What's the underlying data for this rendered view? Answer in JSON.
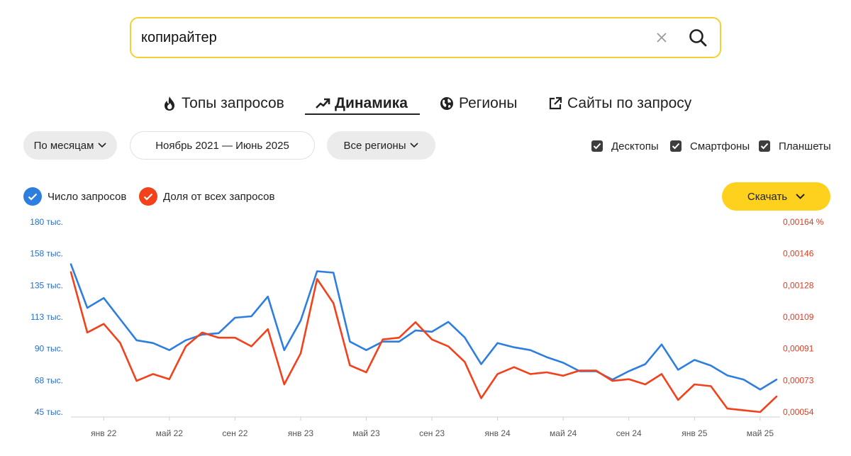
{
  "search": {
    "value": "копирайтер"
  },
  "tabs": [
    {
      "label": "Топы запросов",
      "icon": "fire-icon"
    },
    {
      "label": "Динамика",
      "icon": "trend-icon",
      "active": true
    },
    {
      "label": "Регионы",
      "icon": "globe-icon"
    },
    {
      "label": "Сайты по запросу",
      "icon": "external-link-icon"
    }
  ],
  "filters": {
    "period": "По месяцам",
    "date_range": "Ноябрь 2021 — Июнь 2025",
    "region": "Все регионы"
  },
  "devices": [
    {
      "label": "Десктопы",
      "checked": true
    },
    {
      "label": "Смартфоны",
      "checked": true
    },
    {
      "label": "Планшеты",
      "checked": true
    }
  ],
  "legend": {
    "count": {
      "label": "Число запросов",
      "color": "#2e7ee0"
    },
    "share": {
      "label": "Доля от всех запросов",
      "color": "#f2411b"
    }
  },
  "download_label": "Скачать",
  "chart_data": {
    "type": "line",
    "x": [
      "ноя 21",
      "дек 21",
      "янв 22",
      "фев 22",
      "мар 22",
      "апр 22",
      "май 22",
      "июн 22",
      "июл 22",
      "авг 22",
      "сен 22",
      "окт 22",
      "ноя 22",
      "дек 22",
      "янв 23",
      "фев 23",
      "мар 23",
      "апр 23",
      "май 23",
      "июн 23",
      "июл 23",
      "авг 23",
      "сен 23",
      "окт 23",
      "ноя 23",
      "дек 23",
      "янв 24",
      "фев 24",
      "мар 24",
      "апр 24",
      "май 24",
      "июн 24",
      "июл 24",
      "авг 24",
      "сен 24",
      "окт 24",
      "ноя 24",
      "дек 24",
      "янв 25",
      "фев 25",
      "мар 25",
      "апр 25",
      "май 25",
      "июн 25"
    ],
    "x_tick_labels": [
      "янв 22",
      "май 22",
      "сен 22",
      "янв 23",
      "май 23",
      "сен 23",
      "янв 24",
      "май 24",
      "сен 24",
      "янв 25",
      "май 25"
    ],
    "x_tick_indices": [
      2,
      6,
      10,
      14,
      18,
      22,
      26,
      30,
      34,
      38,
      42
    ],
    "y_left": {
      "ticks": [
        "180 тыс.",
        "158 тыс.",
        "135 тыс.",
        "113 тыс.",
        "90 тыс.",
        "68 тыс.",
        "45 тыс."
      ],
      "range": [
        45,
        180
      ]
    },
    "y_right": {
      "ticks": [
        "0,00164 %",
        "0,00146",
        "0,00128",
        "0,00109",
        "0,00091",
        "0,00073",
        "0,00054"
      ],
      "range": [
        0.00054,
        0.00164
      ]
    },
    "series": [
      {
        "name": "Число запросов",
        "axis": "left",
        "values": [
          150,
          119,
          126,
          111,
          96,
          94,
          89,
          96,
          100,
          101,
          112,
          113,
          127,
          89,
          110,
          145,
          144,
          95,
          89,
          95,
          95,
          103,
          102,
          109,
          98,
          79,
          94,
          91,
          89,
          84,
          80,
          74,
          74,
          68,
          74,
          79,
          93,
          75,
          82,
          78,
          71,
          68,
          61,
          68
        ]
      },
      {
        "name": "Доля от всех запросов",
        "axis": "right",
        "values": [
          0.00135,
          0.001,
          0.00105,
          0.00094,
          0.00072,
          0.00076,
          0.00073,
          0.00092,
          0.001,
          0.00097,
          0.00097,
          0.00092,
          0.00102,
          0.0007,
          0.00088,
          0.00131,
          0.00117,
          0.00081,
          0.00077,
          0.00096,
          0.00097,
          0.00106,
          0.00096,
          0.00092,
          0.00083,
          0.00062,
          0.00076,
          0.0008,
          0.00076,
          0.00077,
          0.00075,
          0.00078,
          0.00078,
          0.00072,
          0.00073,
          0.0007,
          0.00076,
          0.00061,
          0.0007,
          0.00069,
          0.00056,
          0.00055,
          0.00054,
          0.00063
        ]
      }
    ]
  }
}
